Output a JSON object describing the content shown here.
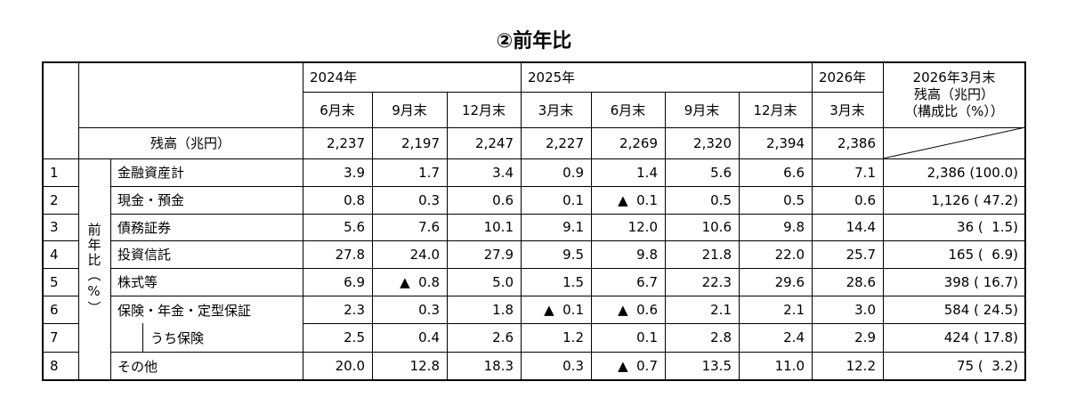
{
  "title": "②前年比",
  "table": {
    "years": [
      "2024年",
      "2025年",
      "2026年"
    ],
    "months": [
      "6月末",
      "9月末",
      "12月末",
      "3月末",
      "6月末",
      "9月末",
      "12月末",
      "3月末"
    ],
    "last_header": [
      "2026年3月末",
      "残高（兆円）",
      "（構成比（%））"
    ],
    "balance_label": "残高（兆円）",
    "balances": [
      "2,237",
      "2,197",
      "2,247",
      "2,227",
      "2,269",
      "2,320",
      "2,394",
      "2,386"
    ],
    "side_label": "前年比（%）",
    "rows": [
      {
        "no": "1",
        "label": "金融資産計",
        "values": [
          "3.9",
          "1.7",
          "3.4",
          "0.9",
          "1.4",
          "5.6",
          "6.6",
          "7.1"
        ],
        "share": "2,386 (100.0)"
      },
      {
        "no": "2",
        "label": "現金・預金",
        "values": [
          "0.8",
          "0.3",
          "0.6",
          "0.1",
          "▲  0.1",
          "0.5",
          "0.5",
          "0.6"
        ],
        "share": "1,126 ( 47.2)"
      },
      {
        "no": "3",
        "label": "債務証券",
        "values": [
          "5.6",
          "7.6",
          "10.1",
          "9.1",
          "12.0",
          "10.6",
          "9.8",
          "14.4"
        ],
        "share": "36 (  1.5)"
      },
      {
        "no": "4",
        "label": "投資信託",
        "values": [
          "27.8",
          "24.0",
          "27.9",
          "9.5",
          "9.8",
          "21.8",
          "22.0",
          "25.7"
        ],
        "share": "165 (  6.9)"
      },
      {
        "no": "5",
        "label": "株式等",
        "values": [
          "6.9",
          "▲  0.8",
          "5.0",
          "1.5",
          "6.7",
          "22.3",
          "29.6",
          "28.6"
        ],
        "share": "398 ( 16.7)"
      },
      {
        "no": "6",
        "label": "保険・年金・定型保証",
        "values": [
          "2.3",
          "0.3",
          "1.8",
          "▲  0.1",
          "▲  0.6",
          "2.1",
          "2.1",
          "3.0"
        ],
        "share": "584 ( 24.5)"
      },
      {
        "no": "7",
        "label": "うち保険",
        "values": [
          "2.5",
          "0.4",
          "2.6",
          "1.2",
          "0.1",
          "2.8",
          "2.4",
          "2.9"
        ],
        "share": "424 ( 17.8)"
      },
      {
        "no": "8",
        "label": "その他",
        "values": [
          "20.0",
          "12.8",
          "18.3",
          "0.3",
          "▲  0.7",
          "13.5",
          "11.0",
          "12.2"
        ],
        "share": "75 (  3.2)"
      }
    ]
  }
}
